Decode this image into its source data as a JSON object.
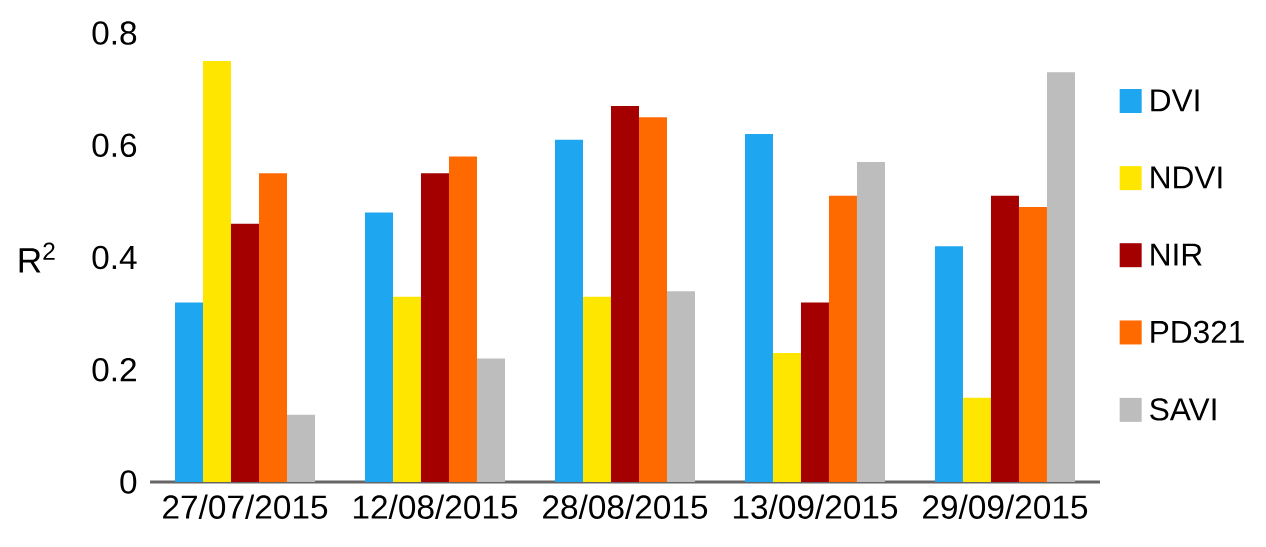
{
  "chart_data": {
    "type": "bar",
    "ylabel": "R$^{2}$",
    "categories": [
      "27/07/2015",
      "12/08/2015",
      "28/08/2015",
      "13/09/2015",
      "29/09/2015"
    ],
    "series": [
      {
        "name": "DVI",
        "color": "#1ea6f0",
        "values": [
          0.32,
          0.48,
          0.61,
          0.62,
          0.42
        ]
      },
      {
        "name": "NDVI",
        "color": "#ffe600",
        "values": [
          0.75,
          0.33,
          0.33,
          0.23,
          0.15
        ]
      },
      {
        "name": "NIR",
        "color": "#a50000",
        "values": [
          0.46,
          0.55,
          0.67,
          0.32,
          0.51
        ]
      },
      {
        "name": "PD321",
        "color": "#ff6a00",
        "values": [
          0.55,
          0.58,
          0.65,
          0.51,
          0.49
        ]
      },
      {
        "name": "SAVI",
        "color": "#bdbdbd",
        "values": [
          0.12,
          0.22,
          0.34,
          0.57,
          0.73
        ]
      }
    ],
    "ylim": [
      0,
      0.8
    ],
    "yticks": [
      0,
      0.2,
      0.4,
      0.6,
      0.8
    ],
    "grid": false,
    "legend": "right"
  }
}
